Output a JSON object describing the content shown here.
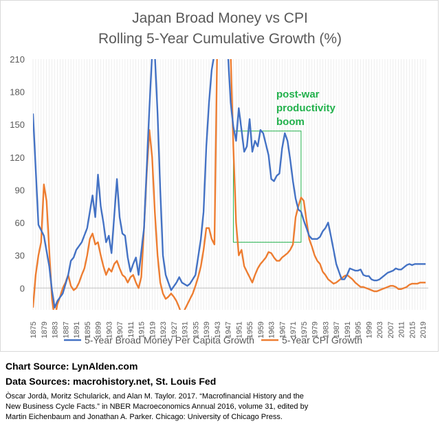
{
  "chart_data": {
    "type": "line",
    "title": "Japan Broad Money vs CPI",
    "subtitle": "Rolling 5-Year Cumulative Growth (%)",
    "ylim": [
      -20,
      210
    ],
    "y_ticks": [
      0,
      30,
      60,
      90,
      120,
      150,
      180,
      210
    ],
    "x_ticks": [
      1875,
      1879,
      1883,
      1887,
      1891,
      1895,
      1899,
      1903,
      1907,
      1911,
      1915,
      1919,
      1923,
      1927,
      1931,
      1935,
      1939,
      1943,
      1947,
      1951,
      1955,
      1959,
      1963,
      1967,
      1971,
      1975,
      1979,
      1983,
      1987,
      1991,
      1995,
      1999,
      2003,
      2007,
      2011,
      2015,
      2019
    ],
    "grid": "vertical year lines",
    "legend_position": "bottom",
    "series": [
      {
        "name": "5-Year Broad Money Per Capita Growth",
        "color": "#4472c4",
        "points": [
          [
            1875,
            160
          ],
          [
            1877,
            58
          ],
          [
            1879,
            48
          ],
          [
            1881,
            20
          ],
          [
            1882,
            -2
          ],
          [
            1883,
            -18
          ],
          [
            1884,
            -12
          ],
          [
            1886,
            -5
          ],
          [
            1888,
            12
          ],
          [
            1889,
            25
          ],
          [
            1890,
            28
          ],
          [
            1891,
            35
          ],
          [
            1893,
            42
          ],
          [
            1895,
            55
          ],
          [
            1897,
            85
          ],
          [
            1898,
            65
          ],
          [
            1899,
            104
          ],
          [
            1900,
            75
          ],
          [
            1901,
            60
          ],
          [
            1902,
            42
          ],
          [
            1903,
            48
          ],
          [
            1904,
            32
          ],
          [
            1906,
            100
          ],
          [
            1907,
            65
          ],
          [
            1908,
            50
          ],
          [
            1909,
            48
          ],
          [
            1910,
            28
          ],
          [
            1911,
            15
          ],
          [
            1912,
            22
          ],
          [
            1913,
            28
          ],
          [
            1914,
            12
          ],
          [
            1916,
            55
          ],
          [
            1918,
            165
          ],
          [
            1919,
            215
          ],
          [
            1920,
            215
          ],
          [
            1921,
            160
          ],
          [
            1922,
            90
          ],
          [
            1923,
            30
          ],
          [
            1924,
            12
          ],
          [
            1925,
            5
          ],
          [
            1926,
            -2
          ],
          [
            1928,
            5
          ],
          [
            1929,
            10
          ],
          [
            1930,
            5
          ],
          [
            1932,
            2
          ],
          [
            1933,
            4
          ],
          [
            1935,
            12
          ],
          [
            1937,
            45
          ],
          [
            1938,
            70
          ],
          [
            1939,
            130
          ],
          [
            1940,
            170
          ],
          [
            1941,
            200
          ],
          [
            1942,
            215
          ],
          [
            1943,
            215
          ],
          [
            1947,
            215
          ],
          [
            1948,
            170
          ],
          [
            1949,
            148
          ],
          [
            1950,
            135
          ],
          [
            1951,
            165
          ],
          [
            1952,
            145
          ],
          [
            1953,
            125
          ],
          [
            1954,
            130
          ],
          [
            1955,
            155
          ],
          [
            1956,
            125
          ],
          [
            1957,
            135
          ],
          [
            1958,
            130
          ],
          [
            1959,
            145
          ],
          [
            1960,
            142
          ],
          [
            1961,
            132
          ],
          [
            1962,
            122
          ],
          [
            1963,
            100
          ],
          [
            1964,
            98
          ],
          [
            1965,
            103
          ],
          [
            1966,
            105
          ],
          [
            1967,
            128
          ],
          [
            1968,
            142
          ],
          [
            1969,
            135
          ],
          [
            1970,
            118
          ],
          [
            1971,
            98
          ],
          [
            1972,
            82
          ],
          [
            1973,
            72
          ],
          [
            1974,
            70
          ],
          [
            1975,
            62
          ],
          [
            1976,
            55
          ],
          [
            1977,
            48
          ],
          [
            1978,
            45
          ],
          [
            1979,
            45
          ],
          [
            1980,
            45
          ],
          [
            1981,
            47
          ],
          [
            1982,
            52
          ],
          [
            1983,
            55
          ],
          [
            1984,
            60
          ],
          [
            1985,
            48
          ],
          [
            1986,
            35
          ],
          [
            1987,
            22
          ],
          [
            1988,
            15
          ],
          [
            1989,
            8
          ],
          [
            1990,
            8
          ],
          [
            1991,
            12
          ],
          [
            1992,
            18
          ],
          [
            1993,
            17
          ],
          [
            1994,
            16
          ],
          [
            1995,
            16
          ],
          [
            1996,
            17
          ],
          [
            1997,
            12
          ],
          [
            1998,
            11
          ],
          [
            1999,
            11
          ],
          [
            2000,
            8
          ],
          [
            2001,
            7
          ],
          [
            2002,
            7
          ],
          [
            2003,
            8
          ],
          [
            2004,
            10
          ],
          [
            2005,
            12
          ],
          [
            2006,
            14
          ],
          [
            2007,
            15
          ],
          [
            2008,
            16
          ],
          [
            2009,
            18
          ],
          [
            2010,
            17
          ],
          [
            2011,
            17
          ],
          [
            2012,
            19
          ],
          [
            2013,
            21
          ],
          [
            2014,
            22
          ],
          [
            2015,
            21
          ],
          [
            2016,
            22
          ],
          [
            2017,
            22
          ],
          [
            2018,
            22
          ],
          [
            2019,
            22
          ],
          [
            2020,
            22
          ]
        ]
      },
      {
        "name": "5-Year CPI Growth",
        "color": "#ed7d31",
        "points": [
          [
            1875,
            -18
          ],
          [
            1876,
            12
          ],
          [
            1877,
            30
          ],
          [
            1878,
            42
          ],
          [
            1879,
            95
          ],
          [
            1880,
            80
          ],
          [
            1881,
            35
          ],
          [
            1882,
            -10
          ],
          [
            1883,
            -28
          ],
          [
            1884,
            -15
          ],
          [
            1885,
            -8
          ],
          [
            1886,
            0
          ],
          [
            1887,
            5
          ],
          [
            1888,
            12
          ],
          [
            1889,
            2
          ],
          [
            1890,
            -2
          ],
          [
            1891,
            0
          ],
          [
            1892,
            5
          ],
          [
            1893,
            12
          ],
          [
            1894,
            18
          ],
          [
            1895,
            30
          ],
          [
            1896,
            45
          ],
          [
            1897,
            50
          ],
          [
            1898,
            40
          ],
          [
            1899,
            42
          ],
          [
            1900,
            30
          ],
          [
            1901,
            20
          ],
          [
            1902,
            12
          ],
          [
            1903,
            18
          ],
          [
            1904,
            15
          ],
          [
            1905,
            22
          ],
          [
            1906,
            25
          ],
          [
            1907,
            18
          ],
          [
            1908,
            12
          ],
          [
            1909,
            10
          ],
          [
            1910,
            5
          ],
          [
            1911,
            10
          ],
          [
            1912,
            12
          ],
          [
            1913,
            5
          ],
          [
            1914,
            0
          ],
          [
            1915,
            10
          ],
          [
            1916,
            55
          ],
          [
            1917,
            105
          ],
          [
            1918,
            145
          ],
          [
            1919,
            120
          ],
          [
            1920,
            70
          ],
          [
            1921,
            30
          ],
          [
            1922,
            5
          ],
          [
            1923,
            -5
          ],
          [
            1924,
            -10
          ],
          [
            1925,
            -8
          ],
          [
            1926,
            -5
          ],
          [
            1927,
            -8
          ],
          [
            1928,
            -12
          ],
          [
            1929,
            -18
          ],
          [
            1930,
            -25
          ],
          [
            1931,
            -20
          ],
          [
            1932,
            -15
          ],
          [
            1933,
            -10
          ],
          [
            1934,
            -5
          ],
          [
            1935,
            2
          ],
          [
            1936,
            10
          ],
          [
            1937,
            20
          ],
          [
            1938,
            35
          ],
          [
            1939,
            55
          ],
          [
            1940,
            55
          ],
          [
            1941,
            45
          ],
          [
            1942,
            40
          ],
          [
            1943,
            215
          ],
          [
            1948,
            215
          ],
          [
            1949,
            130
          ],
          [
            1950,
            60
          ],
          [
            1951,
            30
          ],
          [
            1952,
            35
          ],
          [
            1953,
            20
          ],
          [
            1954,
            15
          ],
          [
            1955,
            10
          ],
          [
            1956,
            5
          ],
          [
            1957,
            12
          ],
          [
            1958,
            18
          ],
          [
            1959,
            22
          ],
          [
            1960,
            25
          ],
          [
            1961,
            28
          ],
          [
            1962,
            33
          ],
          [
            1963,
            32
          ],
          [
            1964,
            28
          ],
          [
            1965,
            25
          ],
          [
            1966,
            25
          ],
          [
            1967,
            28
          ],
          [
            1968,
            30
          ],
          [
            1969,
            32
          ],
          [
            1970,
            35
          ],
          [
            1971,
            40
          ],
          [
            1972,
            65
          ],
          [
            1973,
            75
          ],
          [
            1974,
            83
          ],
          [
            1975,
            80
          ],
          [
            1976,
            62
          ],
          [
            1977,
            45
          ],
          [
            1978,
            38
          ],
          [
            1979,
            30
          ],
          [
            1980,
            25
          ],
          [
            1981,
            22
          ],
          [
            1982,
            15
          ],
          [
            1983,
            12
          ],
          [
            1984,
            8
          ],
          [
            1985,
            6
          ],
          [
            1986,
            4
          ],
          [
            1987,
            5
          ],
          [
            1988,
            7
          ],
          [
            1989,
            9
          ],
          [
            1990,
            11
          ],
          [
            1991,
            12
          ],
          [
            1992,
            10
          ],
          [
            1993,
            8
          ],
          [
            1994,
            5
          ],
          [
            1995,
            3
          ],
          [
            1996,
            1
          ],
          [
            1997,
            1
          ],
          [
            1998,
            0
          ],
          [
            1999,
            -1
          ],
          [
            2000,
            -2
          ],
          [
            2001,
            -3
          ],
          [
            2002,
            -3
          ],
          [
            2003,
            -2
          ],
          [
            2004,
            -1
          ],
          [
            2005,
            0
          ],
          [
            2006,
            1
          ],
          [
            2007,
            2
          ],
          [
            2008,
            2
          ],
          [
            2009,
            1
          ],
          [
            2010,
            -1
          ],
          [
            2011,
            -1
          ],
          [
            2012,
            0
          ],
          [
            2013,
            1
          ],
          [
            2014,
            3
          ],
          [
            2015,
            4
          ],
          [
            2016,
            4
          ],
          [
            2017,
            4
          ],
          [
            2018,
            5
          ],
          [
            2019,
            5
          ],
          [
            2020,
            5
          ]
        ]
      }
    ],
    "annotation": {
      "lines": [
        "post-war",
        "productivity",
        "boom"
      ],
      "box_x": [
        1949,
        1974
      ],
      "box_y": [
        42,
        144
      ],
      "color": "#22b14c"
    }
  },
  "source": {
    "chart_source": "Chart Source: LynAlden.com",
    "data_sources": "Data Sources: macrohistory.net, St. Louis Fed",
    "citation_1": "Òscar Jordà, Moritz Schularick, and Alan M. Taylor. 2017. “Macrofinancial History and the",
    "citation_2": "New Business Cycle Facts.” in NBER Macroeconomics Annual 2016, volume 31, edited by",
    "citation_3": "Martin Eichenbaum and Jonathan A. Parker. Chicago: University of Chicago Press."
  }
}
